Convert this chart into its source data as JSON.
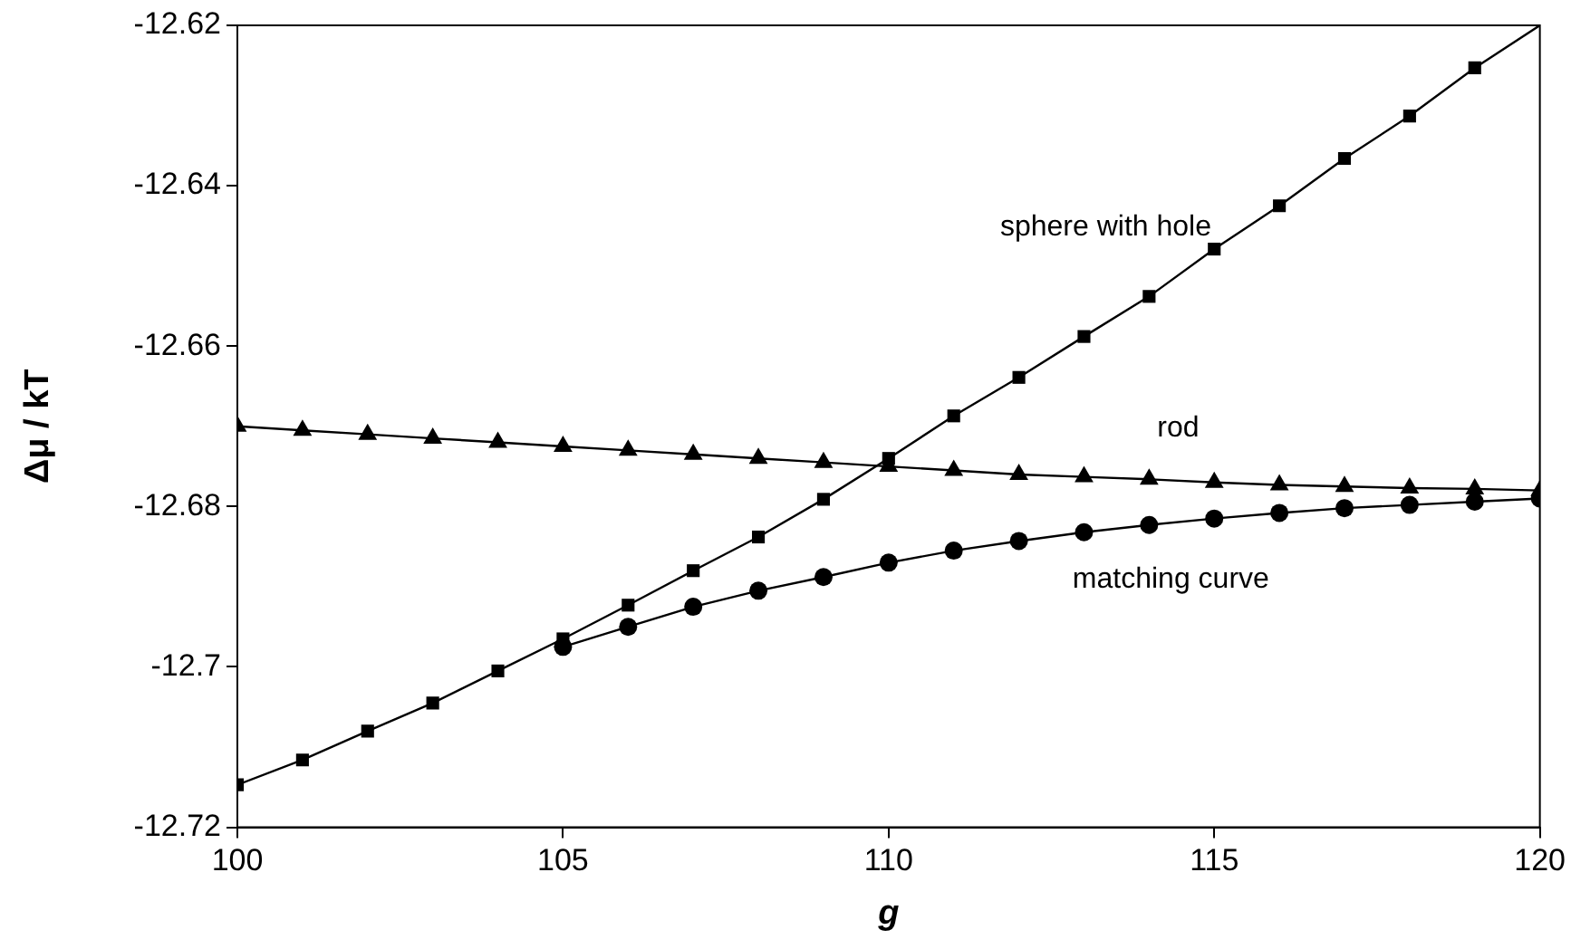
{
  "chart_data": {
    "type": "line",
    "xlabel": "g",
    "ylabel": "Δμ / kT",
    "xlim": [
      100,
      120
    ],
    "xticks": [
      100,
      105,
      110,
      115,
      120
    ],
    "ylim": [
      -12.72,
      -12.62
    ],
    "yticks": [
      -12.72,
      -12.7,
      -12.68,
      -12.66,
      -12.64,
      -12.62
    ],
    "grid": false,
    "legend": false,
    "line_style": "solid",
    "series": [
      {
        "name": "sphere with hole",
        "color": "#000000",
        "marker": "square",
        "x": [
          100,
          101,
          102,
          103,
          104,
          105,
          106,
          107,
          108,
          109,
          110,
          111,
          112,
          113,
          114,
          115,
          116,
          117,
          118,
          119
        ],
        "values": [
          -12.7147,
          -12.7116,
          -12.708,
          -12.7045,
          -12.7005,
          -12.6965,
          -12.6923,
          -12.688,
          -12.6838,
          -12.6791,
          -12.674,
          -12.6687,
          -12.6639,
          -12.6588,
          -12.6538,
          -12.6479,
          -12.6425,
          -12.6366,
          -12.6313,
          -12.6253
        ]
      },
      {
        "name": "rod",
        "color": "#000000",
        "marker": "triangle",
        "x": [
          100,
          101,
          102,
          103,
          104,
          105,
          106,
          107,
          108,
          109,
          110,
          111,
          112,
          113,
          114,
          115,
          116,
          117,
          118,
          119,
          120
        ],
        "values": [
          -12.67,
          -12.6705,
          -12.671,
          -12.6715,
          -12.672,
          -12.6725,
          -12.673,
          -12.6735,
          -12.674,
          -12.6745,
          -12.675,
          -12.6755,
          -12.676,
          -12.6763,
          -12.6766,
          -12.677,
          -12.6773,
          -12.6775,
          -12.6777,
          -12.6778,
          -12.678
        ]
      },
      {
        "name": "matching curve",
        "color": "#000000",
        "marker": "circle",
        "x": [
          105,
          106,
          107,
          108,
          109,
          110,
          111,
          112,
          113,
          114,
          115,
          116,
          117,
          118,
          119,
          120
        ],
        "values": [
          -12.6975,
          -12.695,
          -12.6925,
          -12.6905,
          -12.6888,
          -12.687,
          -12.6855,
          -12.6843,
          -12.6832,
          -12.6823,
          -12.6815,
          -12.6808,
          -12.6802,
          -12.6798,
          -12.6794,
          -12.679
        ]
      },
      {
        "color": "#000000",
        "marker": "none",
        "x": [
          119,
          120
        ],
        "values": [
          -12.6253,
          -12.62
        ]
      }
    ]
  }
}
